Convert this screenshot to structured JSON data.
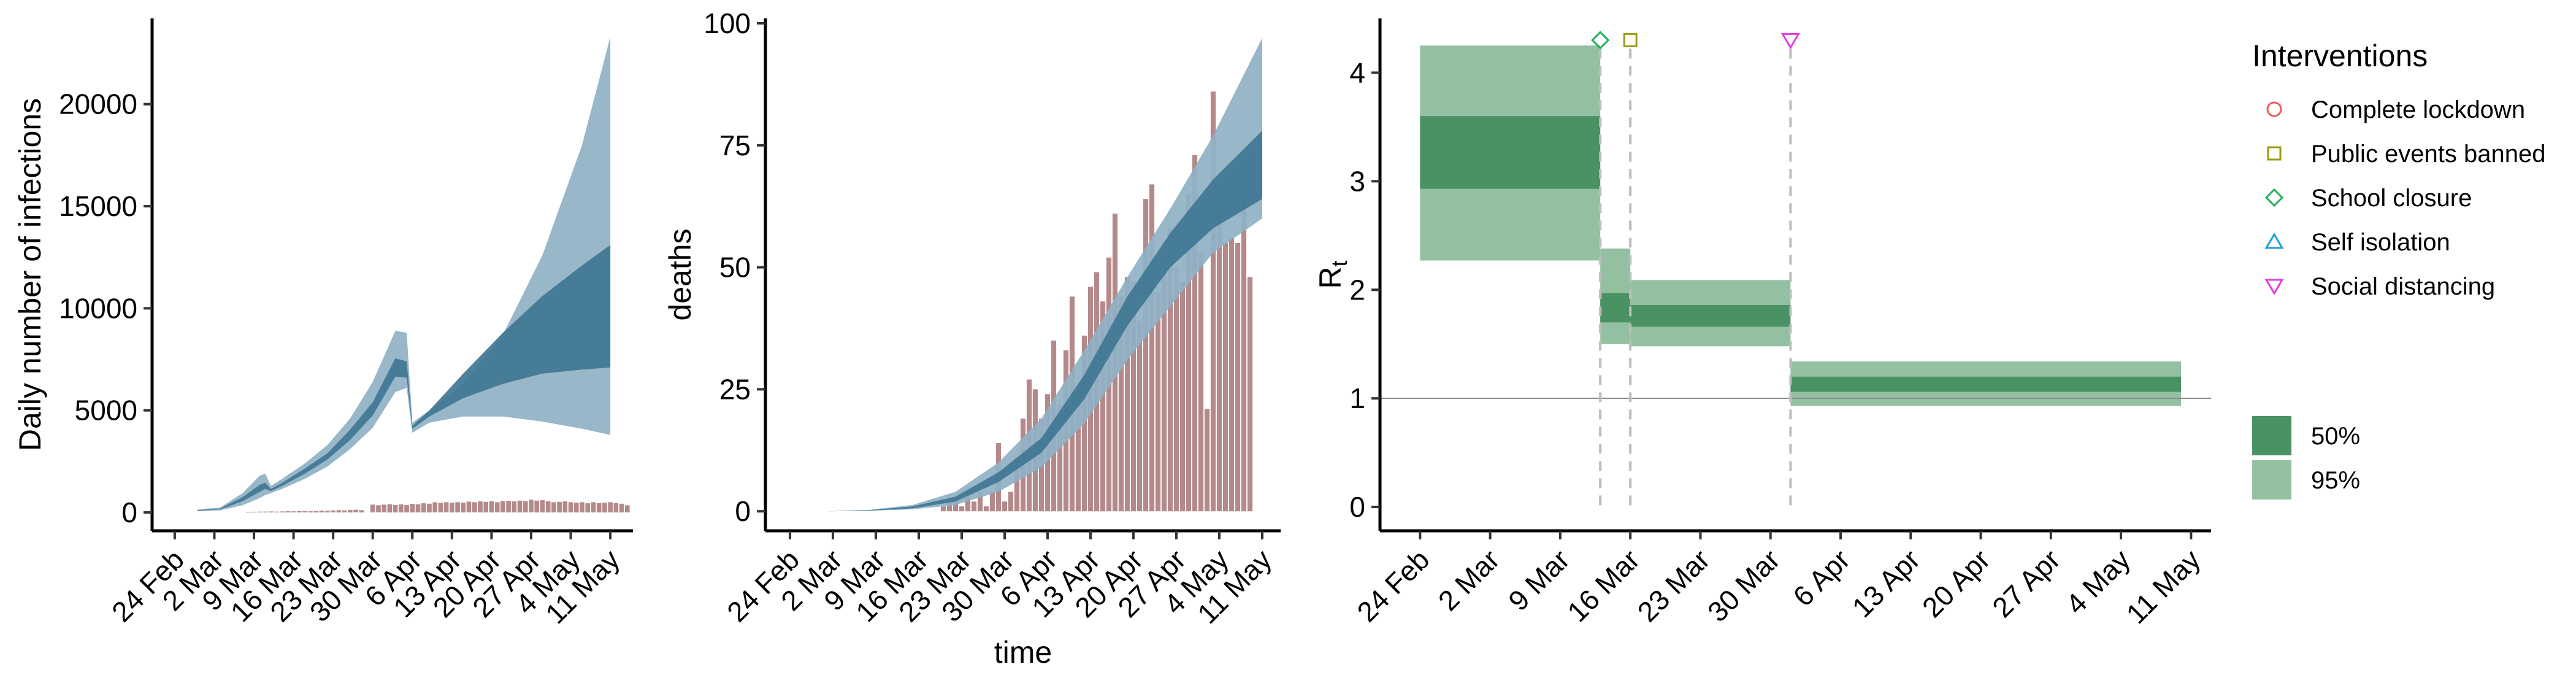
{
  "colors": {
    "band95_blue": "#8fb1c4",
    "band50_blue": "#3f7692",
    "bar_brown": "#b4898a",
    "band95_green": "#93c0a1",
    "band50_green": "#4a9264",
    "ref_line": "#8a8a8a",
    "dash": "#bdbdbd",
    "lockdown": "#f05a5a",
    "public_events": "#9a9a14",
    "school": "#1eb05a",
    "self_isolation": "#1c9fd6",
    "social_distancing": "#e23be2"
  },
  "date_ticks": [
    "24 Feb",
    "2 Mar",
    "9 Mar",
    "16 Mar",
    "23 Mar",
    "30 Mar",
    "6 Apr",
    "13 Apr",
    "20 Apr",
    "27 Apr",
    "4 May",
    "11 May"
  ],
  "chart_data": [
    {
      "id": "infections",
      "type": "area",
      "ylabel": "Daily number of infections",
      "xlabel": "",
      "x_start": "2020-02-28",
      "x_end": "2020-05-11",
      "ylim": [
        -900,
        24200
      ],
      "yticks": [
        0,
        5000,
        10000,
        15000,
        20000
      ],
      "ytick_labels": [
        "0",
        "5000",
        "10000",
        "15000",
        "20000"
      ],
      "band_dates": [
        "2020-02-28",
        "2020-03-03",
        "2020-03-07",
        "2020-03-10",
        "2020-03-11",
        "2020-03-12",
        "2020-03-14",
        "2020-03-18",
        "2020-03-22",
        "2020-03-26",
        "2020-03-30",
        "2020-04-03",
        "2020-04-05",
        "2020-04-06",
        "2020-04-09",
        "2020-04-15",
        "2020-04-22",
        "2020-04-29",
        "2020-05-06",
        "2020-05-11"
      ],
      "band95_low": [
        60,
        100,
        350,
        700,
        850,
        950,
        1150,
        1650,
        2250,
        3100,
        4150,
        5900,
        6100,
        3900,
        4400,
        4700,
        4700,
        4450,
        4100,
        3800
      ],
      "band95_high": [
        140,
        240,
        950,
        1800,
        1900,
        1300,
        1650,
        2400,
        3300,
        4600,
        6400,
        8900,
        8800,
        4400,
        5000,
        6300,
        8700,
        12600,
        18000,
        23300
      ],
      "band50_low": [
        90,
        150,
        550,
        1000,
        1150,
        1050,
        1300,
        1900,
        2600,
        3550,
        4750,
        6650,
        6600,
        4100,
        4700,
        5600,
        6300,
        6800,
        7000,
        7100
      ],
      "band50_high": [
        115,
        190,
        750,
        1350,
        1450,
        1150,
        1450,
        2150,
        2900,
        4050,
        5400,
        7550,
        7400,
        4250,
        5000,
        6800,
        8800,
        10600,
        12100,
        13100
      ],
      "bars_start": "2020-03-08",
      "bars": [
        30,
        35,
        40,
        45,
        50,
        40,
        50,
        60,
        55,
        65,
        70,
        60,
        75,
        90,
        80,
        100,
        110,
        100,
        120,
        130,
        110,
        0,
        380,
        350,
        380,
        400,
        370,
        400,
        360,
        420,
        400,
        450,
        430,
        500,
        470,
        500,
        480,
        500,
        480,
        530,
        500,
        540,
        520,
        550,
        500,
        560,
        570,
        540,
        580,
        560,
        620,
        580,
        600,
        550,
        500,
        520,
        540,
        500,
        480,
        500,
        450,
        500,
        460,
        480,
        500,
        460,
        430,
        350
      ],
      "bar_max_visible": 700
    },
    {
      "id": "deaths",
      "type": "area",
      "ylabel": "deaths",
      "xlabel": "time",
      "x_start": "2020-03-01",
      "x_end": "2020-05-11",
      "ylim": [
        -4,
        101
      ],
      "yticks": [
        0,
        25,
        50,
        75,
        100
      ],
      "ytick_labels": [
        "0",
        "25",
        "50",
        "75",
        "100"
      ],
      "band_dates": [
        "2020-03-01",
        "2020-03-08",
        "2020-03-15",
        "2020-03-22",
        "2020-03-29",
        "2020-04-05",
        "2020-04-12",
        "2020-04-19",
        "2020-04-26",
        "2020-05-03",
        "2020-05-11"
      ],
      "band95_low": [
        0,
        0.1,
        0.4,
        1.3,
        4,
        9,
        18,
        31,
        42,
        53,
        60
      ],
      "band95_high": [
        0,
        0.3,
        1.3,
        4,
        10,
        19,
        33,
        48,
        62,
        77,
        97
      ],
      "band50_low": [
        0,
        0.15,
        0.6,
        2,
        6,
        12,
        23,
        38,
        50,
        58,
        64
      ],
      "band50_high": [
        0,
        0.25,
        1,
        3,
        8,
        15,
        28,
        44,
        57,
        68,
        78
      ],
      "bars_start": "2020-03-20",
      "bars": [
        1,
        2,
        3,
        1,
        3,
        2,
        4,
        1,
        4,
        14,
        2,
        4,
        11,
        19,
        27,
        25,
        19,
        24,
        35,
        22,
        33,
        44,
        25,
        36,
        46,
        49,
        43,
        52,
        61,
        44,
        48,
        47,
        39,
        64,
        67,
        45,
        52,
        58,
        50,
        47,
        65,
        73,
        53,
        21,
        86,
        62,
        55,
        56,
        55,
        70,
        48
      ],
      "bar_max_visible": 100
    },
    {
      "id": "rt",
      "type": "step-band",
      "ylabel": "Rt",
      "ylabel_main": "R",
      "ylabel_sub": "t",
      "xlabel": "",
      "x_start": "2020-02-24",
      "x_end": "2020-05-11",
      "ylim": [
        -0.22,
        4.5
      ],
      "yticks": [
        0,
        1,
        2,
        3,
        4
      ],
      "ytick_labels": [
        "0",
        "1",
        "2",
        "3",
        "4"
      ],
      "reference_line": 1,
      "segments": [
        {
          "start": "2020-02-24",
          "end": "2020-03-13",
          "low95": 2.27,
          "high95": 4.25,
          "low50": 2.93,
          "high50": 3.6
        },
        {
          "start": "2020-03-13",
          "end": "2020-03-16",
          "low95": 1.5,
          "high95": 2.38,
          "low50": 1.7,
          "high50": 1.97
        },
        {
          "start": "2020-03-16",
          "end": "2020-04-01",
          "low95": 1.48,
          "high95": 2.09,
          "low50": 1.66,
          "high50": 1.86
        },
        {
          "start": "2020-04-01",
          "end": "2020-05-10",
          "low95": 0.93,
          "high95": 1.34,
          "low50": 1.06,
          "high50": 1.2
        }
      ],
      "interventions": [
        {
          "type": "school_closure",
          "date": "2020-03-13",
          "marker": "diamond",
          "y": 4.3
        },
        {
          "type": "public_events_banned",
          "date": "2020-03-16",
          "marker": "square",
          "y": 4.3
        },
        {
          "type": "social_distancing",
          "date": "2020-04-01",
          "marker": "triangle-down",
          "y": 4.3
        }
      ]
    }
  ],
  "legend": {
    "title": "Interventions",
    "items": [
      {
        "key": "lockdown",
        "label": "Complete lockdown",
        "marker": "circle"
      },
      {
        "key": "public_events",
        "label": "Public events banned",
        "marker": "square"
      },
      {
        "key": "school",
        "label": "School closure",
        "marker": "diamond"
      },
      {
        "key": "self_isolation",
        "label": "Self isolation",
        "marker": "triangle-up"
      },
      {
        "key": "social_distancing",
        "label": "Social distancing",
        "marker": "triangle-down"
      }
    ],
    "fill_items": [
      {
        "label": "50%",
        "color_key": "band50_green"
      },
      {
        "label": "95%",
        "color_key": "band95_green"
      }
    ]
  }
}
